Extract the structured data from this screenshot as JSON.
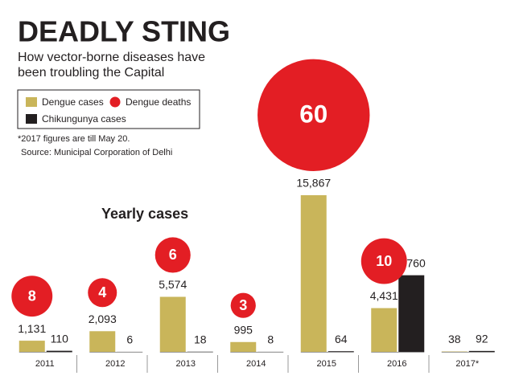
{
  "chart_data": {
    "type": "bar",
    "title": "DEADLY STING",
    "subtitle": "How vector-borne diseases have been troubling the Capital",
    "note": "*2017 figures are till May 20.",
    "source": "Source: Municipal Corporation of Delhi",
    "heading": "Yearly cases",
    "categories": [
      "2011",
      "2012",
      "2013",
      "2014",
      "2015",
      "2016",
      "2017*"
    ],
    "series": [
      {
        "name": "Dengue cases",
        "color": "#c9b55a",
        "values": [
          1131,
          2093,
          5574,
          995,
          15867,
          4431,
          38
        ],
        "value_labels": [
          "1,131",
          "2,093",
          "5,574",
          "995",
          "15,867",
          "4,431",
          "38"
        ]
      },
      {
        "name": "Dengue deaths",
        "color": "#e31e24",
        "type": "bubble",
        "values": [
          8,
          4,
          6,
          3,
          60,
          10,
          null
        ]
      },
      {
        "name": "Chikungunya cases",
        "color": "#231f20",
        "values": [
          110,
          6,
          18,
          8,
          64,
          7760,
          92
        ],
        "value_labels": [
          "110",
          "6",
          "18",
          "8",
          "64",
          "7,760",
          "92"
        ]
      }
    ]
  }
}
